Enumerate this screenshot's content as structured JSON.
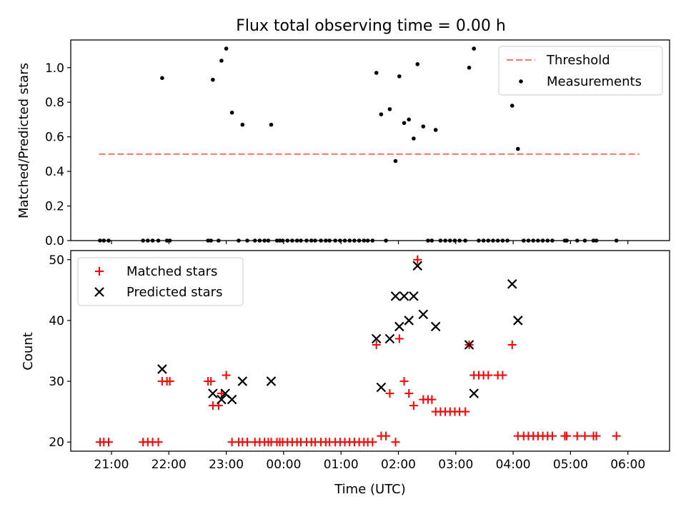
{
  "figure_title": "Flux total observing time = 0.00 h",
  "xlabel": "Time (UTC)",
  "x_ticks": [
    "21:00",
    "22:00",
    "23:00",
    "00:00",
    "01:00",
    "02:00",
    "03:00",
    "04:00",
    "05:00",
    "06:00"
  ],
  "colors": {
    "threshold": "#ff7070",
    "measurement": "#000000",
    "matched": "#ff0000",
    "predicted": "#000000"
  },
  "chart_data": [
    {
      "type": "scatter",
      "ylabel": "Matched/Predicted stars",
      "ylim": [
        0,
        1.16
      ],
      "y_ticks": [
        "0.0",
        "0.2",
        "0.4",
        "0.6",
        "0.8",
        "1.0"
      ],
      "legend_position": "top-right",
      "threshold": {
        "name": "Threshold",
        "value": 0.5,
        "x_start": "20:47",
        "x_end": "06:12"
      },
      "series": [
        {
          "name": "Measurements",
          "points": [
            [
              "20:48",
              0
            ],
            [
              "20:52",
              0
            ],
            [
              "20:57",
              0
            ],
            [
              "21:33",
              0
            ],
            [
              "21:38",
              0
            ],
            [
              "21:43",
              0
            ],
            [
              "21:49",
              0
            ],
            [
              "21:53",
              0.94
            ],
            [
              "21:58",
              0
            ],
            [
              "22:01",
              0
            ],
            [
              "22:41",
              0
            ],
            [
              "22:44",
              0
            ],
            [
              "22:46",
              0.93
            ],
            [
              "22:52",
              0
            ],
            [
              "22:55",
              1.04
            ],
            [
              "23:00",
              1.11
            ],
            [
              "23:06",
              0.74
            ],
            [
              "23:13",
              0
            ],
            [
              "23:17",
              0.67
            ],
            [
              "23:22",
              0
            ],
            [
              "23:30",
              0
            ],
            [
              "23:35",
              0
            ],
            [
              "23:40",
              0
            ],
            [
              "23:44",
              0
            ],
            [
              "23:47",
              0.67
            ],
            [
              "23:53",
              0
            ],
            [
              "23:56",
              0
            ],
            [
              "23:59",
              0
            ],
            [
              "00:04",
              0
            ],
            [
              "00:09",
              0
            ],
            [
              "00:14",
              0
            ],
            [
              "00:18",
              0
            ],
            [
              "00:24",
              0
            ],
            [
              "00:29",
              0
            ],
            [
              "00:33",
              0
            ],
            [
              "00:39",
              0
            ],
            [
              "00:44",
              0
            ],
            [
              "00:48",
              0
            ],
            [
              "00:54",
              0
            ],
            [
              "00:59",
              0
            ],
            [
              "01:04",
              0
            ],
            [
              "01:09",
              0
            ],
            [
              "01:14",
              0
            ],
            [
              "01:19",
              0
            ],
            [
              "01:24",
              0
            ],
            [
              "01:28",
              0
            ],
            [
              "01:33",
              0
            ],
            [
              "01:37",
              0.97
            ],
            [
              "01:42",
              0.73
            ],
            [
              "01:47",
              0
            ],
            [
              "01:51",
              0.76
            ],
            [
              "01:57",
              0.46
            ],
            [
              "02:01",
              0.95
            ],
            [
              "02:06",
              0.68
            ],
            [
              "02:11",
              0.7
            ],
            [
              "02:16",
              0.59
            ],
            [
              "02:20",
              1.02
            ],
            [
              "02:26",
              0.66
            ],
            [
              "02:31",
              0
            ],
            [
              "02:35",
              0
            ],
            [
              "02:39",
              0.64
            ],
            [
              "02:44",
              0
            ],
            [
              "02:49",
              0
            ],
            [
              "02:54",
              0
            ],
            [
              "02:59",
              0
            ],
            [
              "03:04",
              0
            ],
            [
              "03:10",
              0
            ],
            [
              "03:14",
              1.0
            ],
            [
              "03:19",
              1.11
            ],
            [
              "03:24",
              0
            ],
            [
              "03:29",
              0
            ],
            [
              "03:34",
              0
            ],
            [
              "03:39",
              0
            ],
            [
              "03:44",
              0
            ],
            [
              "03:49",
              0
            ],
            [
              "03:54",
              0
            ],
            [
              "03:59",
              0.78
            ],
            [
              "04:05",
              0.53
            ],
            [
              "04:11",
              0
            ],
            [
              "04:16",
              0
            ],
            [
              "04:21",
              0
            ],
            [
              "04:26",
              0
            ],
            [
              "04:31",
              0
            ],
            [
              "04:36",
              0
            ],
            [
              "04:41",
              0
            ],
            [
              "04:54",
              0
            ],
            [
              "04:56",
              0
            ],
            [
              "05:07",
              0
            ],
            [
              "05:15",
              0
            ],
            [
              "05:24",
              0
            ],
            [
              "05:27",
              0
            ],
            [
              "05:48",
              0
            ]
          ]
        }
      ]
    },
    {
      "type": "scatter",
      "ylabel": "Count",
      "ylim": [
        18.5,
        51.5
      ],
      "y_ticks": [
        "20",
        "30",
        "40",
        "50"
      ],
      "legend_position": "top-left",
      "series": [
        {
          "name": "Matched stars",
          "marker": "+",
          "points": [
            [
              "20:48",
              20
            ],
            [
              "20:52",
              20
            ],
            [
              "20:57",
              20
            ],
            [
              "21:33",
              20
            ],
            [
              "21:38",
              20
            ],
            [
              "21:43",
              20
            ],
            [
              "21:49",
              20
            ],
            [
              "21:53",
              30
            ],
            [
              "21:58",
              30
            ],
            [
              "22:01",
              30
            ],
            [
              "22:41",
              30
            ],
            [
              "22:44",
              30
            ],
            [
              "22:46",
              26
            ],
            [
              "22:52",
              26
            ],
            [
              "22:55",
              28
            ],
            [
              "23:00",
              31
            ],
            [
              "23:06",
              20
            ],
            [
              "23:13",
              20
            ],
            [
              "23:17",
              20
            ],
            [
              "23:22",
              20
            ],
            [
              "23:30",
              20
            ],
            [
              "23:35",
              20
            ],
            [
              "23:40",
              20
            ],
            [
              "23:44",
              20
            ],
            [
              "23:47",
              20
            ],
            [
              "23:53",
              20
            ],
            [
              "23:56",
              20
            ],
            [
              "23:59",
              20
            ],
            [
              "00:04",
              20
            ],
            [
              "00:09",
              20
            ],
            [
              "00:14",
              20
            ],
            [
              "00:18",
              20
            ],
            [
              "00:24",
              20
            ],
            [
              "00:29",
              20
            ],
            [
              "00:33",
              20
            ],
            [
              "00:39",
              20
            ],
            [
              "00:44",
              20
            ],
            [
              "00:48",
              20
            ],
            [
              "00:54",
              20
            ],
            [
              "00:59",
              20
            ],
            [
              "01:04",
              20
            ],
            [
              "01:09",
              20
            ],
            [
              "01:14",
              20
            ],
            [
              "01:19",
              20
            ],
            [
              "01:24",
              20
            ],
            [
              "01:28",
              20
            ],
            [
              "01:33",
              20
            ],
            [
              "01:37",
              36
            ],
            [
              "01:42",
              21
            ],
            [
              "01:47",
              21
            ],
            [
              "01:51",
              28
            ],
            [
              "01:57",
              20
            ],
            [
              "02:01",
              37
            ],
            [
              "02:06",
              30
            ],
            [
              "02:11",
              28
            ],
            [
              "02:16",
              26
            ],
            [
              "02:20",
              50
            ],
            [
              "02:26",
              27
            ],
            [
              "02:31",
              27
            ],
            [
              "02:35",
              27
            ],
            [
              "02:39",
              25
            ],
            [
              "02:44",
              25
            ],
            [
              "02:49",
              25
            ],
            [
              "02:54",
              25
            ],
            [
              "02:59",
              25
            ],
            [
              "03:04",
              25
            ],
            [
              "03:10",
              25
            ],
            [
              "03:14",
              36
            ],
            [
              "03:19",
              31
            ],
            [
              "03:24",
              31
            ],
            [
              "03:29",
              31
            ],
            [
              "03:34",
              31
            ],
            [
              "03:44",
              31
            ],
            [
              "03:49",
              31
            ],
            [
              "03:59",
              36
            ],
            [
              "04:05",
              21
            ],
            [
              "04:11",
              21
            ],
            [
              "04:16",
              21
            ],
            [
              "04:21",
              21
            ],
            [
              "04:26",
              21
            ],
            [
              "04:31",
              21
            ],
            [
              "04:36",
              21
            ],
            [
              "04:41",
              21
            ],
            [
              "04:54",
              21
            ],
            [
              "04:56",
              21
            ],
            [
              "05:07",
              21
            ],
            [
              "05:15",
              21
            ],
            [
              "05:24",
              21
            ],
            [
              "05:27",
              21
            ],
            [
              "05:48",
              21
            ]
          ]
        },
        {
          "name": "Predicted stars",
          "marker": "x",
          "points": [
            [
              "21:53",
              32
            ],
            [
              "22:46",
              28
            ],
            [
              "22:55",
              27
            ],
            [
              "22:59",
              28
            ],
            [
              "23:06",
              27
            ],
            [
              "23:17",
              30
            ],
            [
              "23:47",
              30
            ],
            [
              "01:37",
              37
            ],
            [
              "01:42",
              29
            ],
            [
              "01:51",
              37
            ],
            [
              "01:57",
              44
            ],
            [
              "02:01",
              39
            ],
            [
              "02:06",
              44
            ],
            [
              "02:11",
              40
            ],
            [
              "02:16",
              44
            ],
            [
              "02:20",
              49
            ],
            [
              "02:26",
              41
            ],
            [
              "02:39",
              39
            ],
            [
              "03:14",
              36
            ],
            [
              "03:19",
              28
            ],
            [
              "03:59",
              46
            ],
            [
              "04:05",
              40
            ]
          ]
        }
      ]
    }
  ]
}
